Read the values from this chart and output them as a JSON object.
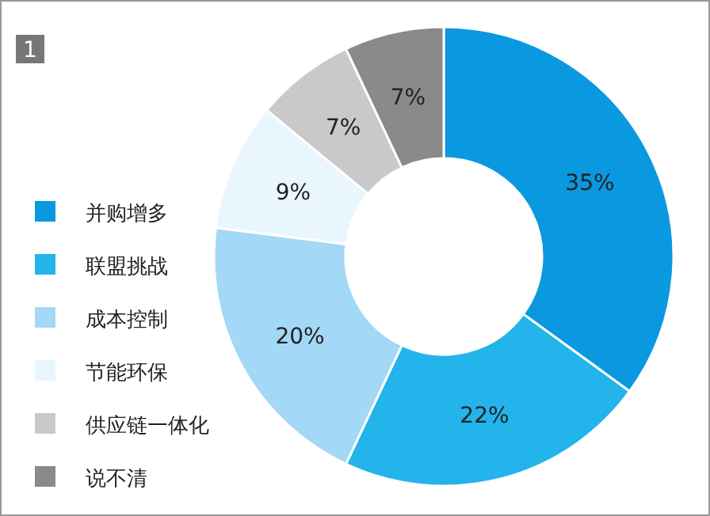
{
  "chart_data": {
    "type": "donut",
    "title": "1",
    "categories": [
      "并购增多",
      "联盟挑战",
      "成本控制",
      "节能环保",
      "供应链一体化",
      "说不清"
    ],
    "values": [
      35,
      22,
      20,
      9,
      7,
      7
    ],
    "value_labels": [
      "35%",
      "22%",
      "20%",
      "9%",
      "7%",
      "7%"
    ],
    "colors": [
      "#0a98e0",
      "#22b4ea",
      "#a3d8f6",
      "#e9f6fd",
      "#c9c9c9",
      "#8a8a8a"
    ],
    "legend": "left"
  }
}
